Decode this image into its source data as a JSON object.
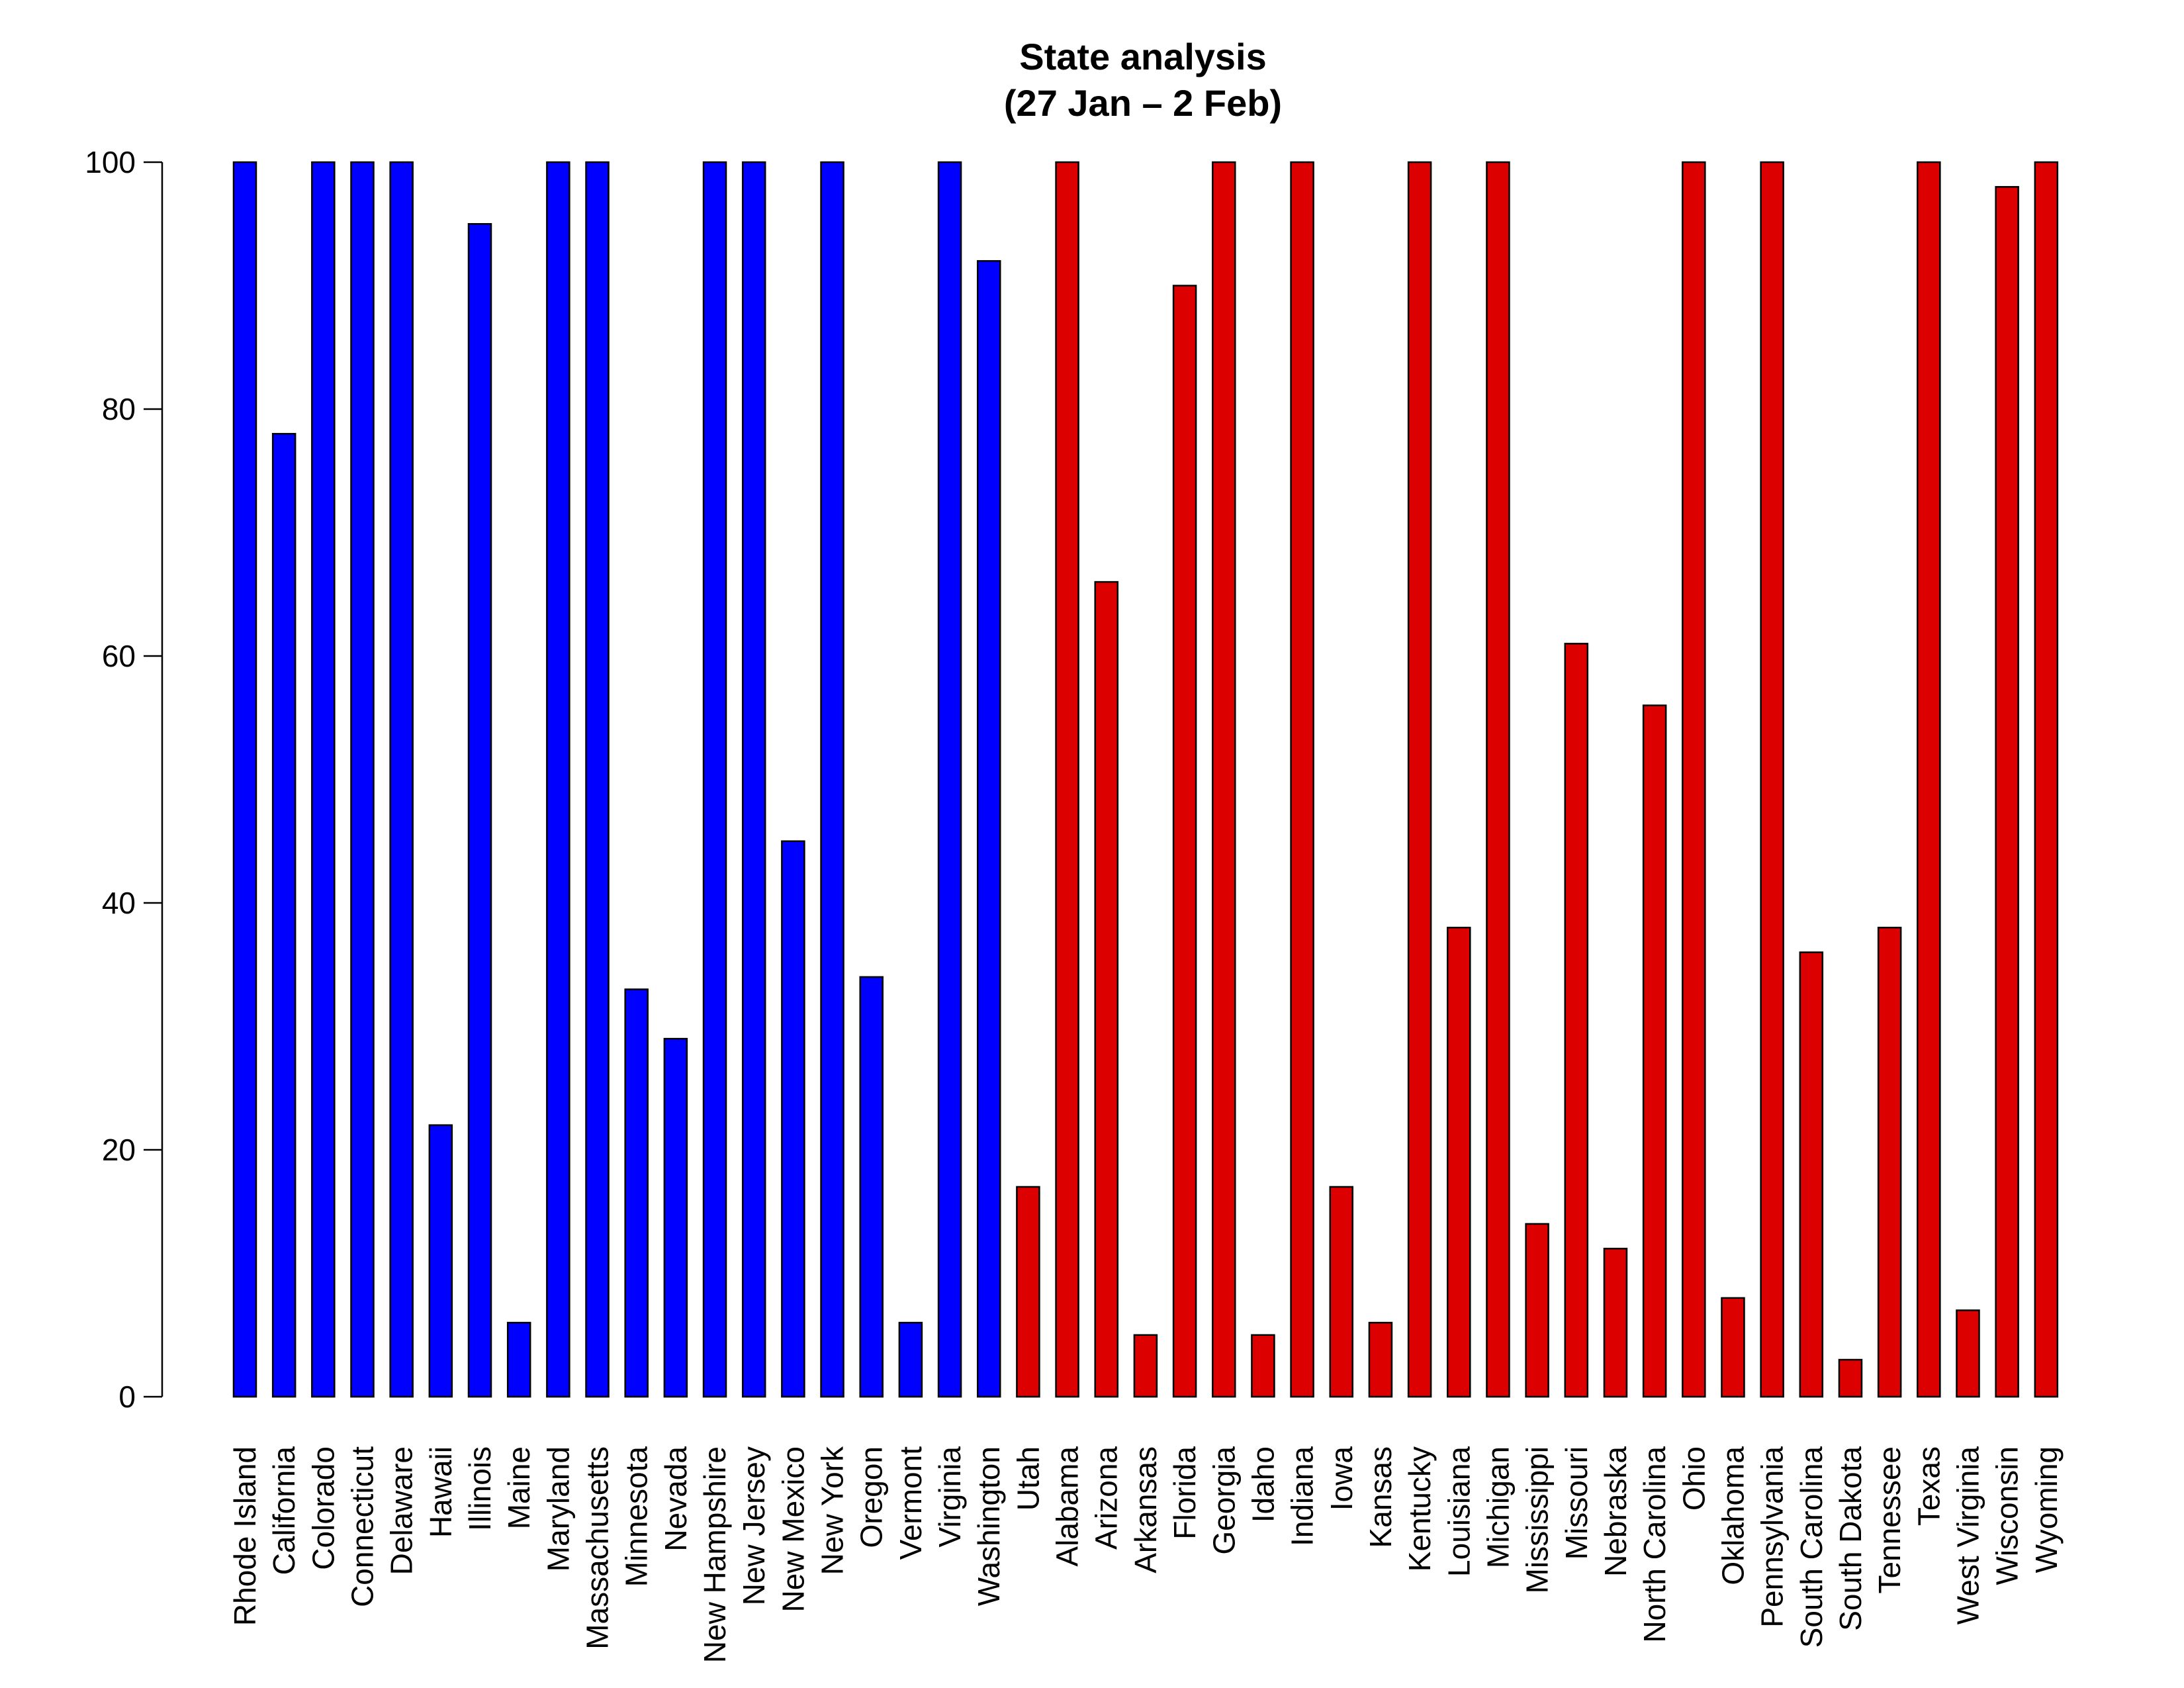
{
  "chart_data": {
    "type": "bar",
    "title_lines": [
      "State analysis",
      "(27 Jan – 2 Feb)"
    ],
    "xlabel": "",
    "ylabel": "",
    "ylim": [
      0,
      100
    ],
    "yticks": [
      0,
      20,
      40,
      60,
      80,
      100
    ],
    "grid": false,
    "categories": [
      "Rhode Island",
      "California",
      "Colorado",
      "Connecticut",
      "Delaware",
      "Hawaii",
      "Illinois",
      "Maine",
      "Maryland",
      "Massachusetts",
      "Minnesota",
      "Nevada",
      "New Hampshire",
      "New Jersey",
      "New Mexico",
      "New York",
      "Oregon",
      "Vermont",
      "Virginia",
      "Washington",
      "Utah",
      "Alabama",
      "Arizona",
      "Arkansas",
      "Florida",
      "Georgia",
      "Idaho",
      "Indiana",
      "Iowa",
      "Kansas",
      "Kentucky",
      "Louisiana",
      "Michigan",
      "Mississippi",
      "Missouri",
      "Nebraska",
      "North Carolina",
      "Ohio",
      "Oklahoma",
      "Pennsylvania",
      "South Carolina",
      "South Dakota",
      "Tennessee",
      "Texas",
      "West Virginia",
      "Wisconsin",
      "Wyoming"
    ],
    "values": [
      100,
      78,
      100,
      100,
      100,
      22,
      95,
      6,
      100,
      100,
      33,
      29,
      100,
      100,
      45,
      100,
      34,
      6,
      100,
      92,
      17,
      100,
      66,
      5,
      90,
      100,
      5,
      100,
      17,
      6,
      100,
      38,
      100,
      14,
      61,
      12,
      56,
      100,
      8,
      100,
      36,
      3,
      38,
      100,
      7,
      98,
      100
    ],
    "bar_colors": [
      "#0000ff",
      "#0000ff",
      "#0000ff",
      "#0000ff",
      "#0000ff",
      "#0000ff",
      "#0000ff",
      "#0000ff",
      "#0000ff",
      "#0000ff",
      "#0000ff",
      "#0000ff",
      "#0000ff",
      "#0000ff",
      "#0000ff",
      "#0000ff",
      "#0000ff",
      "#0000ff",
      "#0000ff",
      "#0000ff",
      "#dd0000",
      "#dd0000",
      "#dd0000",
      "#dd0000",
      "#dd0000",
      "#dd0000",
      "#dd0000",
      "#dd0000",
      "#dd0000",
      "#dd0000",
      "#dd0000",
      "#dd0000",
      "#dd0000",
      "#dd0000",
      "#dd0000",
      "#dd0000",
      "#dd0000",
      "#dd0000",
      "#dd0000",
      "#dd0000",
      "#dd0000",
      "#dd0000",
      "#dd0000",
      "#dd0000",
      "#dd0000",
      "#dd0000",
      "#dd0000"
    ],
    "colors": {
      "blue": "#0000ff",
      "red": "#dd0000",
      "outline": "#000000"
    }
  }
}
